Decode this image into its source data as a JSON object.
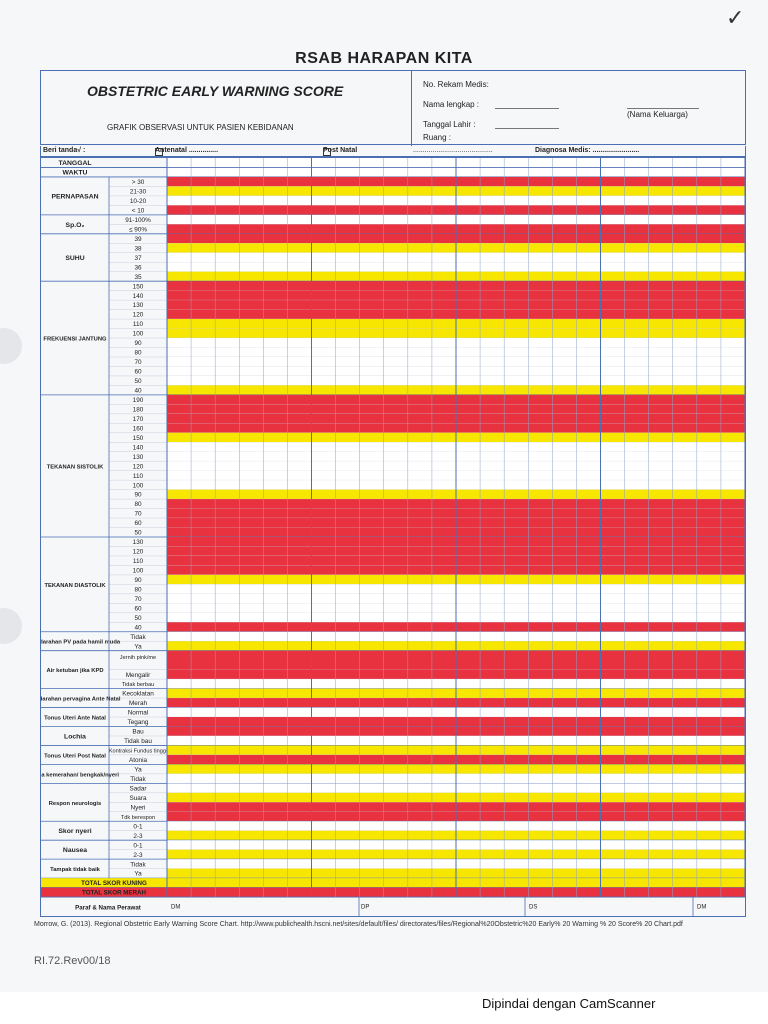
{
  "hospital": "RSAB HARAPAN KITA",
  "header": {
    "title": "OBSTETRIC EARLY WARNING SCORE",
    "subtitle": "GRAFIK OBSERVASI UNTUK PASIEN KEBIDANAN",
    "no_rekam": "No. Rekam Medis:",
    "nama": "Nama lengkap :",
    "nama_keluarga": "(Nama Keluarga)",
    "tanggal_lahir": "Tanggal Lahir :",
    "ruang": "Ruang :"
  },
  "marks": {
    "beri_tanda": "Beri tanda√ :",
    "antenatal": "Antenatal ...............",
    "post_natal": "Post Natal",
    "post_dots": ".........................................",
    "diagnosa": "Diagnosa Medis: ........................"
  },
  "colors": {
    "red": "#e8323f",
    "yellow": "#f7e600",
    "white": "#ffffff",
    "blue": "#4a6fb3"
  },
  "sections": [
    {
      "label": "TANGGAL",
      "rows": [
        {
          "t": "",
          "c": "w"
        }
      ]
    },
    {
      "label": "WAKTU",
      "rows": [
        {
          "t": "",
          "c": "w"
        }
      ]
    },
    {
      "label": "PERNAPASAN",
      "rows": [
        {
          "t": "> 30",
          "c": "r"
        },
        {
          "t": "21-30",
          "c": "y"
        },
        {
          "t": "10-20",
          "c": "w"
        },
        {
          "t": "< 10",
          "c": "r"
        }
      ]
    },
    {
      "label": "Sp.O₂",
      "rows": [
        {
          "t": "91-100%",
          "c": "w"
        },
        {
          "t": "≤ 90%",
          "c": "r"
        }
      ]
    },
    {
      "label": "SUHU",
      "rows": [
        {
          "t": "39",
          "c": "r"
        },
        {
          "t": "38",
          "c": "y"
        },
        {
          "t": "37",
          "c": "w"
        },
        {
          "t": "36",
          "c": "w"
        },
        {
          "t": "35",
          "c": "y"
        }
      ]
    },
    {
      "label": "FREKUENSI JANTUNG",
      "rows": [
        {
          "t": "150",
          "c": "r"
        },
        {
          "t": "140",
          "c": "r"
        },
        {
          "t": "130",
          "c": "r"
        },
        {
          "t": "120",
          "c": "r"
        },
        {
          "t": "110",
          "c": "y"
        },
        {
          "t": "100",
          "c": "y"
        },
        {
          "t": "90",
          "c": "w"
        },
        {
          "t": "80",
          "c": "w"
        },
        {
          "t": "70",
          "c": "w"
        },
        {
          "t": "60",
          "c": "w"
        },
        {
          "t": "50",
          "c": "w"
        },
        {
          "t": "40",
          "c": "y"
        }
      ]
    },
    {
      "label": "TEKANAN SISTOLIK",
      "rows": [
        {
          "t": "190",
          "c": "r"
        },
        {
          "t": "180",
          "c": "r"
        },
        {
          "t": "170",
          "c": "r"
        },
        {
          "t": "160",
          "c": "r"
        },
        {
          "t": "150",
          "c": "y"
        },
        {
          "t": "140",
          "c": "w"
        },
        {
          "t": "130",
          "c": "w"
        },
        {
          "t": "120",
          "c": "w"
        },
        {
          "t": "110",
          "c": "w"
        },
        {
          "t": "100",
          "c": "w"
        },
        {
          "t": "90",
          "c": "y"
        },
        {
          "t": "80",
          "c": "r"
        },
        {
          "t": "70",
          "c": "r"
        },
        {
          "t": "60",
          "c": "r"
        },
        {
          "t": "50",
          "c": "r"
        }
      ]
    },
    {
      "label": "TEKANAN DIASTOLIK",
      "rows": [
        {
          "t": "130",
          "c": "r"
        },
        {
          "t": "120",
          "c": "r"
        },
        {
          "t": "110",
          "c": "r"
        },
        {
          "t": "100",
          "c": "r"
        },
        {
          "t": "90",
          "c": "y"
        },
        {
          "t": "80",
          "c": "w"
        },
        {
          "t": "70",
          "c": "w"
        },
        {
          "t": "60",
          "c": "w"
        },
        {
          "t": "50",
          "c": "w"
        },
        {
          "t": "40",
          "c": "r"
        }
      ]
    },
    {
      "label": "Perdarahan PV pada hamil muda",
      "rows": [
        {
          "t": "Tidak",
          "c": "w"
        },
        {
          "t": "Ya",
          "c": "y"
        }
      ]
    },
    {
      "label": "Air ketuban jika KPD",
      "rows": [
        {
          "t": "Jernih pink/merah/ hijau",
          "c": "r",
          "h": 2
        },
        {
          "t": "Mengalir",
          "c": "r"
        },
        {
          "t": "Tidak berbau",
          "c": "w"
        }
      ]
    },
    {
      "label": "Perdarahan pervagina Ante Natal",
      "rows": [
        {
          "t": "Kecoklatan",
          "c": "y"
        },
        {
          "t": "Merah",
          "c": "r"
        }
      ]
    },
    {
      "label": "Tonus Uteri Ante Natal",
      "rows": [
        {
          "t": "Normal",
          "c": "w"
        },
        {
          "t": "Tegang",
          "c": "r"
        }
      ]
    },
    {
      "label": "Lochia",
      "rows": [
        {
          "t": "Bau",
          "c": "r"
        },
        {
          "t": "Tidak bau",
          "c": "w"
        }
      ]
    },
    {
      "label": "Tonus Uteri Post Natal",
      "rows": [
        {
          "t": "Kontraksi Fundus tinggi",
          "c": "y"
        },
        {
          "t": "Atonia",
          "c": "r"
        }
      ]
    },
    {
      "label": "Luka kemerahan/ bengkak/nyeri",
      "rows": [
        {
          "t": "Ya",
          "c": "y"
        },
        {
          "t": "Tidak",
          "c": "w"
        }
      ]
    },
    {
      "label": "Respon neurologis",
      "rows": [
        {
          "t": "Sadar",
          "c": "w"
        },
        {
          "t": "Suara",
          "c": "y"
        },
        {
          "t": "Nyeri",
          "c": "r"
        },
        {
          "t": "Tdk berespon",
          "c": "r"
        }
      ]
    },
    {
      "label": "Skor nyeri",
      "rows": [
        {
          "t": "0-1",
          "c": "w"
        },
        {
          "t": "2-3",
          "c": "y"
        }
      ]
    },
    {
      "label": "Nausea",
      "rows": [
        {
          "t": "0-1",
          "c": "w"
        },
        {
          "t": "2-3",
          "c": "y"
        }
      ]
    },
    {
      "label": "Tampak tidak baik",
      "rows": [
        {
          "t": "Tidak",
          "c": "w"
        },
        {
          "t": "Ya",
          "c": "y"
        }
      ]
    }
  ],
  "totals": [
    {
      "label": "TOTAL SKOR KUNING",
      "c": "y"
    },
    {
      "label": "TOTAL SKOR MERAH",
      "c": "r"
    }
  ],
  "paraf": {
    "label": "Paraf & Nama Perawat",
    "codes": [
      "DM",
      "DP",
      "DS",
      "DM"
    ]
  },
  "reference": "Morrow, G. (2013). Regional Obstetric Early Warning Score Chart. http://www.publichealth.hscni.net/sites/default/files/ directorates/files/Regional%20Obstetric%20 Early% 20 Warning % 20 Score% 20 Chart.pdf",
  "form_code": "RI.72.Rev00/18",
  "scanner": "Dipindai dengan CamScanner"
}
